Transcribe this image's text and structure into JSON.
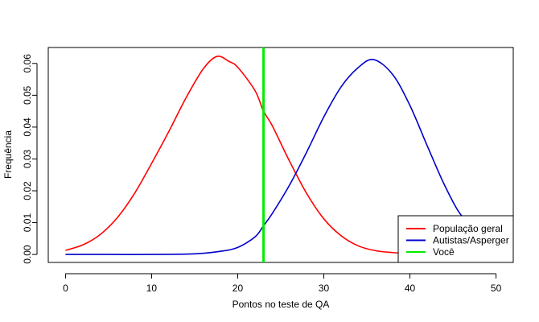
{
  "chart_data": {
    "type": "line",
    "title": "",
    "xlabel": "Pontos no teste de QA",
    "ylabel": "Frequência",
    "xlim": [
      -2,
      52
    ],
    "ylim": [
      -0.0025,
      0.065
    ],
    "xticks": [
      0,
      10,
      20,
      30,
      40,
      50
    ],
    "yticks": [
      0.0,
      0.01,
      0.02,
      0.03,
      0.04,
      0.05,
      0.06
    ],
    "ytick_labels": [
      "0.00",
      "0.01",
      "0.02",
      "0.03",
      "0.04",
      "0.05",
      "0.06"
    ],
    "grid": false,
    "legend_position": "bottom-right",
    "series": [
      {
        "name": "População geral",
        "color": "#ff0000",
        "x": [
          0,
          2,
          4,
          6,
          8,
          10,
          12,
          14,
          16,
          17.6,
          19,
          20,
          22,
          23,
          24,
          26,
          28,
          30,
          32,
          34,
          36,
          38,
          40,
          42,
          44,
          46,
          48
        ],
        "y": [
          0.0013,
          0.003,
          0.0062,
          0.0115,
          0.0191,
          0.0286,
          0.0386,
          0.0492,
          0.0583,
          0.0622,
          0.0606,
          0.0588,
          0.0515,
          0.045,
          0.0405,
          0.0294,
          0.0192,
          0.0112,
          0.0059,
          0.0027,
          0.0012,
          0.0006,
          0.0003,
          0.0001,
          0.0,
          0.0,
          0.0
        ]
      },
      {
        "name": "Autistas/Asperger",
        "color": "#0000cc",
        "x": [
          0,
          5,
          10,
          15,
          18,
          20,
          22,
          23,
          24,
          26,
          28,
          30,
          32,
          34,
          35.8,
          38,
          40,
          42,
          44,
          46,
          47.5
        ],
        "y": [
          0.0,
          0.0,
          0.0,
          0.0002,
          0.001,
          0.0022,
          0.0055,
          0.009,
          0.0128,
          0.0217,
          0.0321,
          0.0432,
          0.0526,
          0.0587,
          0.0612,
          0.0565,
          0.0468,
          0.0342,
          0.0219,
          0.0122,
          0.011
        ]
      },
      {
        "name": "Você",
        "color": "#00ee00",
        "type": "vline",
        "x": 23
      }
    ]
  }
}
